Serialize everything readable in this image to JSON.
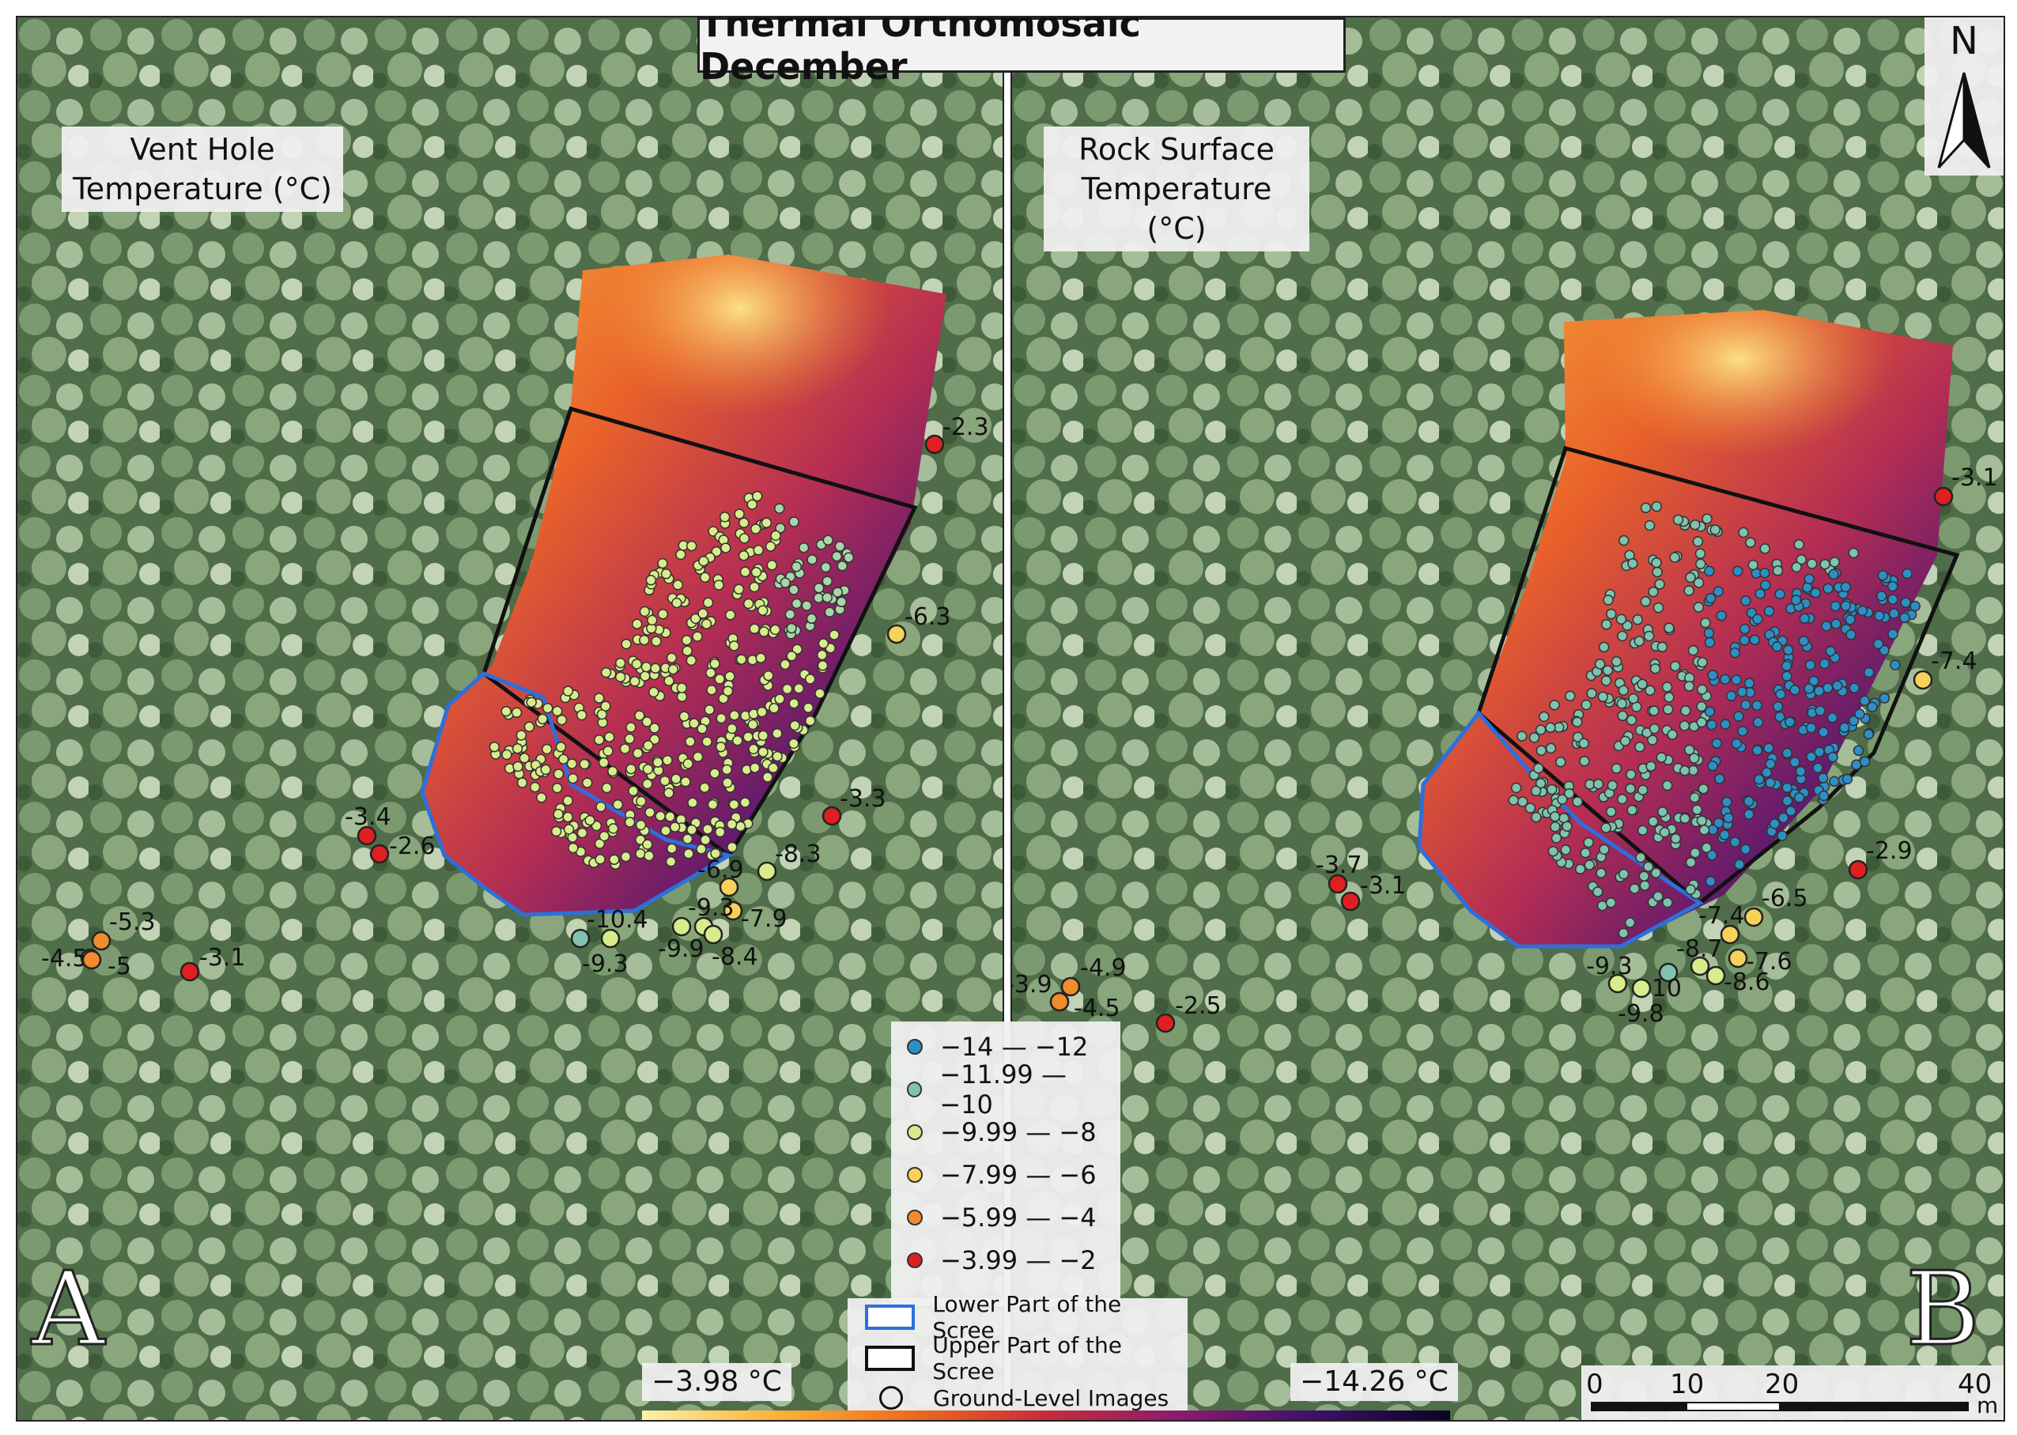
{
  "title": "Thermal Orthomosaic December",
  "panel_a": {
    "label_line1": "Vent Hole",
    "label_line2": "Temperature (°C)",
    "letter": "A",
    "points": [
      {
        "value": "-2.3",
        "class": "c5"
      },
      {
        "value": "-6.3",
        "class": "c3"
      },
      {
        "value": "-3.3",
        "class": "c5"
      },
      {
        "value": "-8.3",
        "class": "c2"
      },
      {
        "value": "-6.9",
        "class": "c3"
      },
      {
        "value": "-7.9",
        "class": "c3"
      },
      {
        "value": "-9.3",
        "class": "c2"
      },
      {
        "value": "-9.9",
        "class": "c2"
      },
      {
        "value": "-8.4",
        "class": "c2"
      },
      {
        "value": "-10.4",
        "class": "c1"
      },
      {
        "value": "-9.3",
        "class": "c2"
      },
      {
        "value": "-3.4",
        "class": "c5"
      },
      {
        "value": "-2.6",
        "class": "c5"
      },
      {
        "value": "-4.5",
        "class": "c4"
      },
      {
        "value": "-5.3",
        "class": "c4"
      },
      {
        "value": "-5",
        "class": "c4"
      },
      {
        "value": "-3.1",
        "class": "c5"
      }
    ]
  },
  "panel_b": {
    "label_line1": "Rock Surface",
    "label_line2": "Temperature (°C)",
    "letter": "B",
    "points": [
      {
        "value": "-3.1",
        "class": "c5"
      },
      {
        "value": "-7.4",
        "class": "c3"
      },
      {
        "value": "-2.9",
        "class": "c5"
      },
      {
        "value": "-6.5",
        "class": "c3"
      },
      {
        "value": "-7.4",
        "class": "c3"
      },
      {
        "value": "-7.6",
        "class": "c3"
      },
      {
        "value": "-8.7",
        "class": "c2"
      },
      {
        "value": "-8.6",
        "class": "c2"
      },
      {
        "value": "-10",
        "class": "c1"
      },
      {
        "value": "-9.3",
        "class": "c2"
      },
      {
        "value": "-9.8",
        "class": "c2"
      },
      {
        "value": "-3.7",
        "class": "c5"
      },
      {
        "value": "-3.1",
        "class": "c5"
      },
      {
        "value": "-3.9",
        "class": "c5"
      },
      {
        "value": "-4.9",
        "class": "c4"
      },
      {
        "value": "-4.5",
        "class": "c4"
      },
      {
        "value": "-2.5",
        "class": "c5"
      }
    ]
  },
  "legend": {
    "classes": [
      {
        "label": "−14   —  −12",
        "color": "#2e8fc7"
      },
      {
        "label": "−11.99   —  −10",
        "color": "#7fc3ae"
      },
      {
        "label": "−9.99   —  −8",
        "color": "#d9ec8c"
      },
      {
        "label": "−7.99   —  −6",
        "color": "#f7d25a"
      },
      {
        "label": "−5.99   —  −4",
        "color": "#f08c2c"
      },
      {
        "label": "−3.99   —  −2",
        "color": "#de2020"
      }
    ],
    "lower_scree": "Lower Part of the Scree",
    "upper_scree": "Upper Part of the Scree",
    "ground_images": "Ground-Level Images",
    "lower_color": "#2d6fdc",
    "upper_color": "#111111"
  },
  "colorbar": {
    "min_label": "−3.98 °C",
    "max_label": "−14.26 °C"
  },
  "north": "N",
  "scalebar": {
    "ticks": [
      "0",
      "10",
      "20",
      "40"
    ],
    "unit": "m"
  }
}
